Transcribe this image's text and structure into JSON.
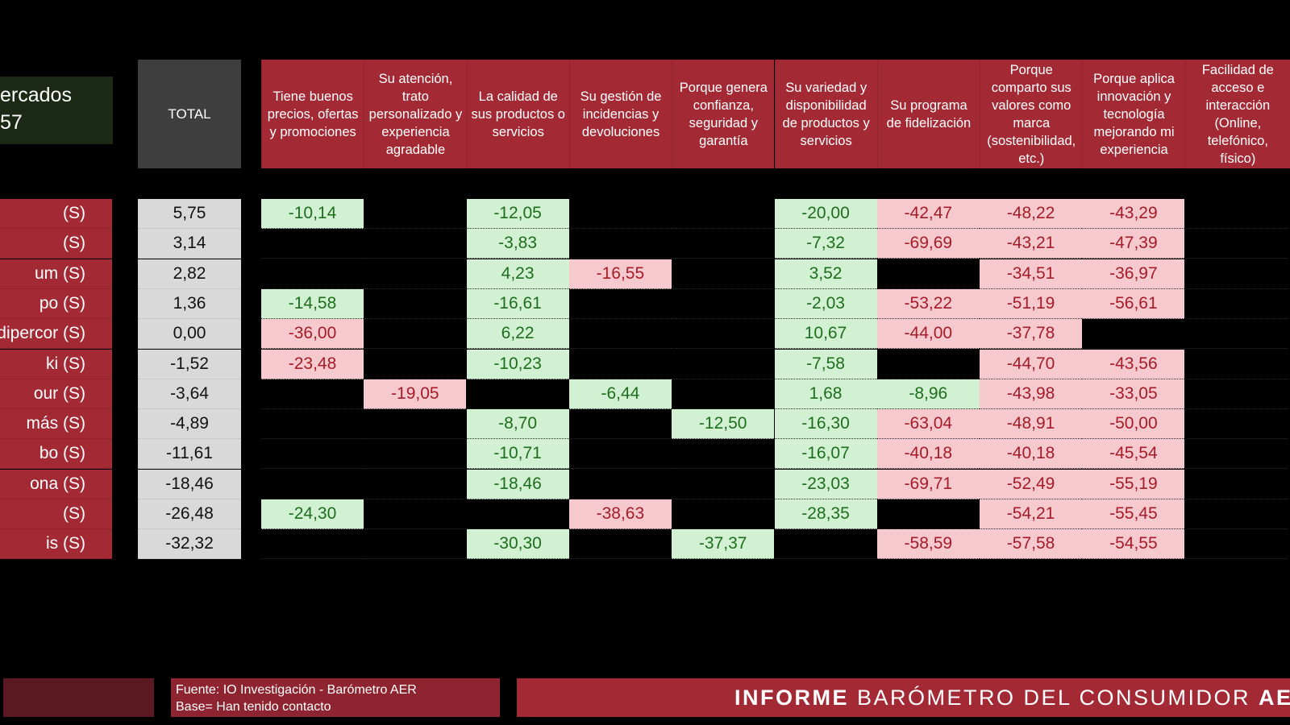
{
  "header": {
    "left_title_line1": "ercados",
    "left_title_line2": "57",
    "total_label": "TOTAL",
    "columns": [
      "Tiene buenos precios, ofertas y promociones",
      "Su atención, trato personalizado y experiencia agradable",
      "La calidad de sus productos o servicios",
      "Su gestión de incidencias y devoluciones",
      "Porque genera confianza, seguridad y garantía",
      "Su variedad y disponibilidad de productos y servicios",
      "Su programa de fidelización",
      "Porque comparto sus valores como marca (sostenibilidad, etc.)",
      "Porque aplica innovación y tecnología mejorando mi experiencia",
      "Facilidad de acceso e interacción (Online, telefónico, físico)"
    ]
  },
  "chart_data": {
    "type": "table",
    "rows": [
      {
        "label": "(S)",
        "total": "5,75",
        "cells": [
          "-10,14",
          "",
          "-12,05",
          "",
          "",
          "-20,00",
          "-42,47",
          "-48,22",
          "-43,29",
          ""
        ]
      },
      {
        "label": "(S)",
        "total": "3,14",
        "cells": [
          "",
          "",
          "-3,83",
          "",
          "",
          "-7,32",
          "-69,69",
          "-43,21",
          "-47,39",
          ""
        ]
      },
      {
        "label": "um (S)",
        "total": "2,82",
        "cells": [
          "",
          "",
          "4,23",
          "-16,55",
          "",
          "3,52",
          "",
          "-34,51",
          "-36,97",
          ""
        ]
      },
      {
        "label": "po (S)",
        "total": "1,36",
        "cells": [
          "-14,58",
          "",
          "-16,61",
          "",
          "",
          "-2,03",
          "-53,22",
          "-51,19",
          "-56,61",
          ""
        ]
      },
      {
        "label": "dipercor (S)",
        "total": "0,00",
        "cells": [
          "-36,00",
          "",
          "6,22",
          "",
          "",
          "10,67",
          "-44,00",
          "-37,78",
          "",
          ""
        ]
      },
      {
        "label": "ki (S)",
        "total": "-1,52",
        "cells": [
          "-23,48",
          "",
          "-10,23",
          "",
          "",
          "-7,58",
          "",
          "-44,70",
          "-43,56",
          ""
        ]
      },
      {
        "label": "our (S)",
        "total": "-3,64",
        "cells": [
          "",
          "-19,05",
          "",
          "-6,44",
          "",
          "1,68",
          "-8,96",
          "-43,98",
          "-33,05",
          ""
        ]
      },
      {
        "label": "más (S)",
        "total": "-4,89",
        "cells": [
          "",
          "",
          "-8,70",
          "",
          "-12,50",
          "-16,30",
          "-63,04",
          "-48,91",
          "-50,00",
          ""
        ]
      },
      {
        "label": "bo (S)",
        "total": "-11,61",
        "cells": [
          "",
          "",
          "-10,71",
          "",
          "",
          "-16,07",
          "-40,18",
          "-40,18",
          "-45,54",
          ""
        ]
      },
      {
        "label": "ona (S)",
        "total": "-18,46",
        "cells": [
          "",
          "",
          "-18,46",
          "",
          "",
          "-23,03",
          "-69,71",
          "-52,49",
          "-55,19",
          ""
        ]
      },
      {
        "label": "(S)",
        "total": "-26,48",
        "cells": [
          "-24,30",
          "",
          "",
          "-38,63",
          "",
          "-28,35",
          "",
          "-54,21",
          "-55,45",
          ""
        ]
      },
      {
        "label": "is (S)",
        "total": "-32,32",
        "cells": [
          "",
          "",
          "-30,30",
          "",
          "-37,37",
          "",
          "-58,59",
          "-57,58",
          "-54,55",
          ""
        ]
      }
    ],
    "cell_colors": [
      [
        "pos",
        "none",
        "pos",
        "none",
        "none",
        "pos",
        "neg",
        "neg",
        "neg",
        "none"
      ],
      [
        "none",
        "none",
        "pos",
        "none",
        "none",
        "pos",
        "neg",
        "neg",
        "neg",
        "none"
      ],
      [
        "none",
        "none",
        "pos",
        "neg",
        "none",
        "pos",
        "none",
        "neg",
        "neg",
        "none"
      ],
      [
        "pos",
        "none",
        "pos",
        "none",
        "none",
        "pos",
        "neg",
        "neg",
        "neg",
        "none"
      ],
      [
        "neg",
        "none",
        "pos",
        "none",
        "none",
        "pos",
        "neg",
        "neg",
        "none",
        "none"
      ],
      [
        "neg",
        "none",
        "pos",
        "none",
        "none",
        "pos",
        "none",
        "neg",
        "neg",
        "none"
      ],
      [
        "none",
        "neg",
        "none",
        "pos",
        "none",
        "pos",
        "pos",
        "neg",
        "neg",
        "none"
      ],
      [
        "none",
        "none",
        "pos",
        "none",
        "pos",
        "pos",
        "neg",
        "neg",
        "neg",
        "none"
      ],
      [
        "none",
        "none",
        "pos",
        "none",
        "none",
        "pos",
        "neg",
        "neg",
        "neg",
        "none"
      ],
      [
        "none",
        "none",
        "pos",
        "none",
        "none",
        "pos",
        "neg",
        "neg",
        "neg",
        "none"
      ],
      [
        "pos",
        "none",
        "none",
        "neg",
        "none",
        "pos",
        "none",
        "neg",
        "neg",
        "none"
      ],
      [
        "none",
        "none",
        "pos",
        "none",
        "pos",
        "none",
        "neg",
        "neg",
        "neg",
        "none"
      ]
    ],
    "colors": {
      "header_red": "#a32a35",
      "positive_bg": "#d2f0d2",
      "positive_text": "#1d6e1d",
      "negative_bg": "#f5c9cd",
      "negative_text": "#a51c28",
      "total_bg": "#d9d9d9"
    }
  },
  "footer": {
    "source_line1": "Fuente: IO Investigación  - Barómetro AER",
    "source_line2": "Base= Han tenido contacto",
    "brand_bold": "INFORME",
    "brand_text": "BARÓMETRO DEL CONSUMIDOR",
    "brand_bold_end": "AER"
  }
}
